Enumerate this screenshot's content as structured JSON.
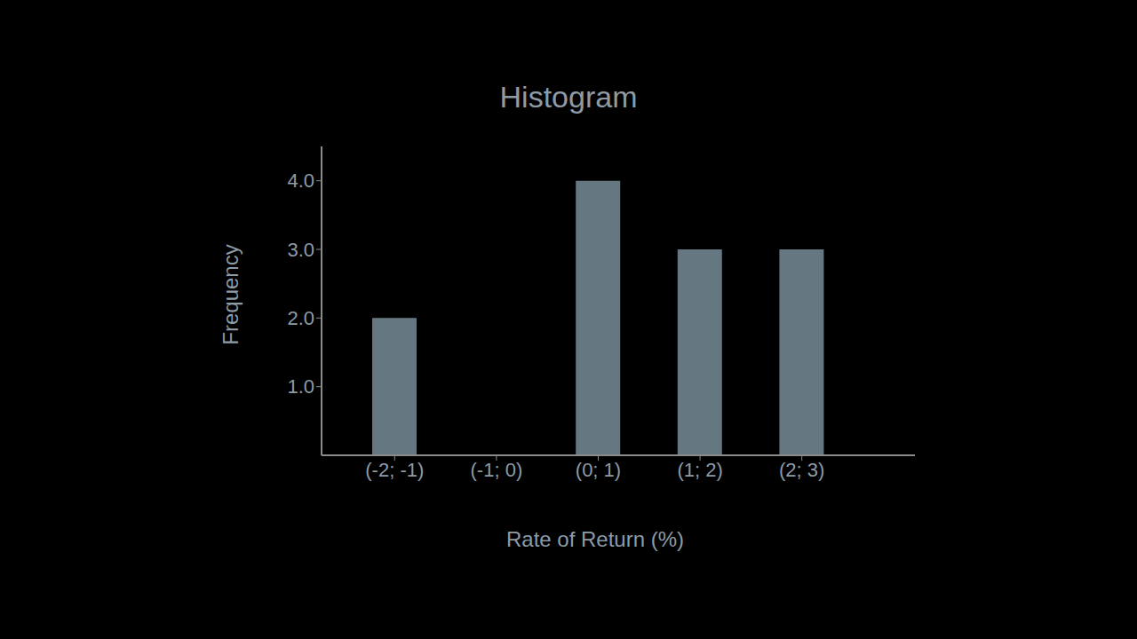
{
  "chart_data": {
    "type": "bar",
    "title": "Histogram",
    "x_label": "Rate of Return (%)",
    "y_label": "Frequency",
    "categories": [
      "(-2; -1)",
      "(-1; 0)",
      "(0; 1)",
      "(1; 2)",
      "(2; 3)"
    ],
    "values": [
      2,
      0,
      4,
      3,
      3
    ],
    "color": "#657781",
    "ylim": [
      0,
      4.5
    ],
    "yticks": [
      {
        "value": 1,
        "label": "1.0"
      },
      {
        "value": 2,
        "label": "2.0"
      },
      {
        "value": 3,
        "label": "3.0"
      },
      {
        "value": 4,
        "label": "4.0"
      }
    ],
    "grid": false
  }
}
